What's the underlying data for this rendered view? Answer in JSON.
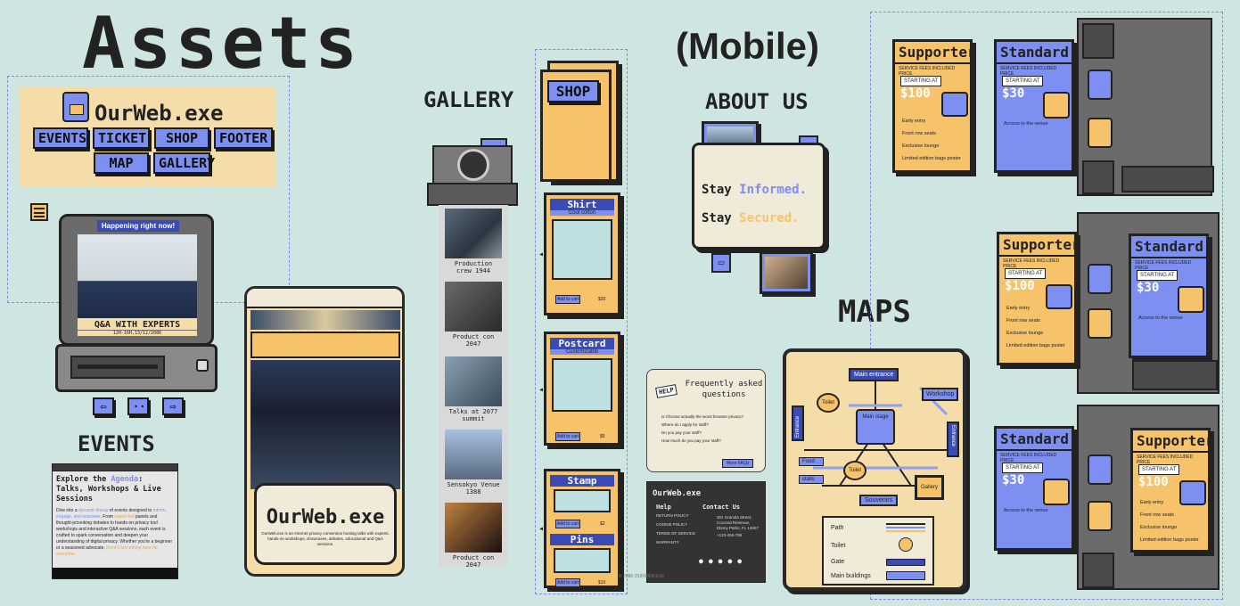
{
  "headings": {
    "assets": "Assets",
    "mobile": "(Mobile)",
    "gallery": "GALLERY",
    "about": "ABOUT US",
    "maps": "MAPS",
    "events": "EVENTS"
  },
  "nav": {
    "logo": "OurWeb.exe",
    "items": [
      "EVENTS",
      "TICKET",
      "SHOP",
      "FOOTER",
      "MAP",
      "GALLERY"
    ]
  },
  "tv": {
    "banner": "Happening right now!",
    "title": "Q&A WITH EXPERTS",
    "subtitle": "12H-16H,13/12/2086"
  },
  "events_card": {
    "heading_pre": "Explore the ",
    "heading_accent": "Agenda",
    "heading_post": ": Talks, Workshops & Live Sessions",
    "body1": "Dive into a ",
    "body_accent1": "dynamic lineup",
    "body2": " of events designed to ",
    "body_accent2": "inform, engage, and empower",
    "body3": ". From ",
    "body_accent3": "expert-led",
    "body4": " panels and thought-provoking debates to hands-on privacy tool workshops and interactive Q&A sessions, each event is crafted to spark conversation and deepen your understanding of digital privacy. Whether you're a beginner or a seasoned advocate, ",
    "body_accent4": "there's something here for everyone."
  },
  "phone": {
    "title": "OurWeb.exe",
    "desc": "OurWeb.exe is an Internet privacy convention hosting talks with experts, hands-on workshops, showcases, debates, educational and Q&A sessions."
  },
  "gallery": {
    "items": [
      "Production crew 1944",
      "Product con 2047",
      "Talks at 2077 summit",
      "Sensokyo Venue 1388",
      "Product con 2047"
    ]
  },
  "shop": {
    "folder_label": "SHOP",
    "shirt": {
      "title": "Shirt",
      "sub": "Cool cotton",
      "add": "Add to cart",
      "price": "$30"
    },
    "postcard": {
      "title": "Postcard",
      "sub": "Customizable",
      "add": "Add to cart",
      "price": "$5"
    },
    "stamp": {
      "title": "Stamp",
      "add": "Add to cart",
      "price": "$2"
    },
    "pins": {
      "title": "Pins",
      "add": "Add to cart",
      "price": "$10"
    }
  },
  "about": {
    "line1_a": "Stay ",
    "line1_b": "Informed.",
    "line2_a": "Stay ",
    "line2_b": "Secured."
  },
  "faq": {
    "badge": "HELP",
    "title": "Frequently asked questions",
    "questions": [
      "Is Chrome actually the worst browser privacy?",
      "Where do I apply for staff?",
      "Do you pay your staff?",
      "How much do you pay your staff?"
    ],
    "more": "More FAQs"
  },
  "footer": {
    "brand": "OurWeb.exe",
    "help": "Help",
    "help_links": [
      "RETURN POLICY",
      "COOKIE POLICY",
      "TERMS OF SERVICE",
      "WARRANTY"
    ],
    "contact": "Contact Us",
    "address": "301 Granola Street, Coconut Revenue, Ebony Parks, FL 13007",
    "phone": "+123-456-789",
    "copyright": "© 2086 OURWEB.EXE"
  },
  "map": {
    "labels": {
      "main_entrance": "Main entrance",
      "workshop": "Workshop",
      "toilet1": "Toilet",
      "toilet2": "Toilet",
      "main_stage": "Main stage",
      "entrance_left": "Entrance",
      "entrance_right": "Entrance",
      "food": "Food",
      "stalls": "stalls",
      "gallery": "Gallery",
      "souvenirs": "Souvenirs"
    },
    "legend": [
      "Path",
      "Toilet",
      "Gate",
      "Main buildings"
    ]
  },
  "tickets": {
    "supporter": {
      "title": "Supporter",
      "fees": "SERVICE FEES INCLUDED PRICE",
      "starting": "STARTING AT",
      "price": "$100",
      "features": [
        "Early entry",
        "Front row seats",
        "Exclusive lounge",
        "Limited edition bags poster"
      ]
    },
    "standard": {
      "title": "Standard",
      "fees": "SERVICE FEES INCLUDED PRICE",
      "starting": "STARTING AT",
      "price": "$30",
      "features": [
        "Access to the venue"
      ]
    }
  },
  "colors": {
    "bg": "#cfe5e1",
    "orange": "#f6c26a",
    "blue": "#7d8ff0",
    "dark": "#2a2a2a"
  }
}
